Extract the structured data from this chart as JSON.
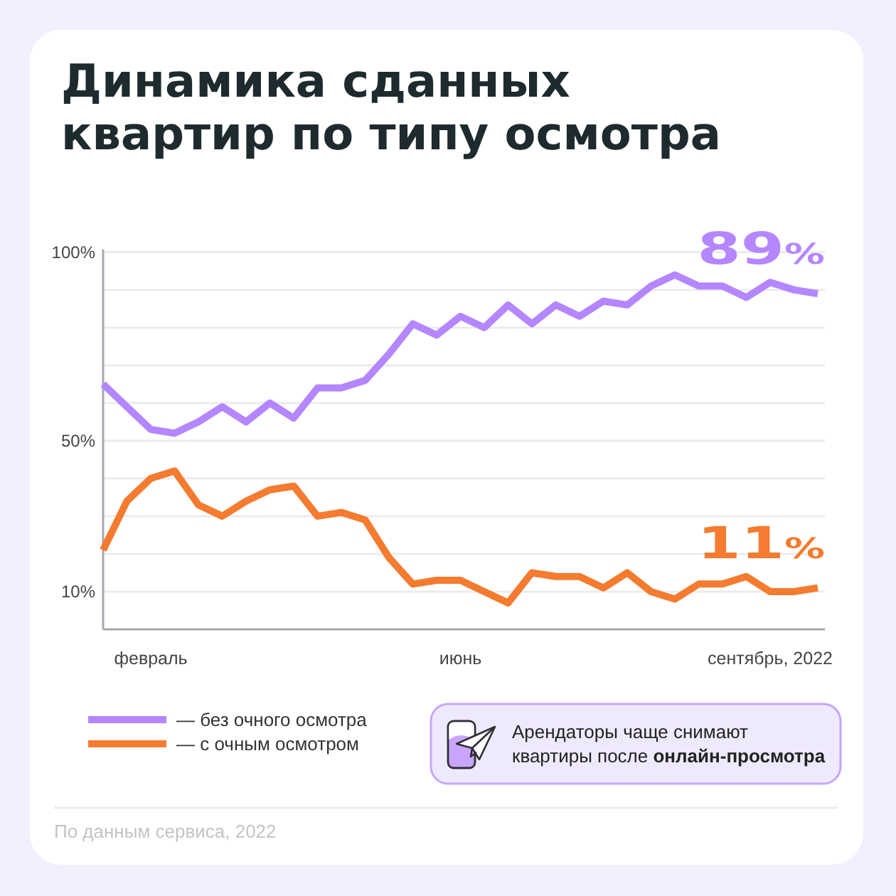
{
  "chart_data": {
    "type": "line",
    "title": "Динамика сданных квартир по типу осмотра",
    "categories": [
      null,
      null,
      "февраль",
      null,
      null,
      null,
      null,
      null,
      null,
      null,
      null,
      null,
      null,
      null,
      null,
      "июнь",
      null,
      null,
      null,
      null,
      null,
      null,
      null,
      null,
      null,
      null,
      null,
      null,
      "сентябрь, 2022",
      null,
      null
    ],
    "series": [
      {
        "name": "— без очного осмотра",
        "color": "#b486ff",
        "values": [
          65,
          59,
          53,
          52,
          55,
          59,
          55,
          60,
          56,
          64,
          64,
          66,
          73,
          81,
          78,
          83,
          80,
          86,
          81,
          86,
          83,
          87,
          86,
          91,
          94,
          91,
          91,
          88,
          92,
          90,
          89
        ],
        "value_labels": [
          null,
          null,
          null,
          null,
          null,
          null,
          null,
          null,
          null,
          null,
          null,
          null,
          null,
          null,
          null,
          null,
          null,
          null,
          null,
          null,
          null,
          null,
          null,
          null,
          null,
          null,
          null,
          null,
          null,
          null,
          "89%"
        ]
      },
      {
        "name": "— с очным осмотром",
        "color": "#f47b2f",
        "values": [
          21,
          34,
          40,
          42,
          33,
          30,
          34,
          37,
          38,
          30,
          31,
          29,
          19,
          12,
          13,
          13,
          10,
          7,
          15,
          14,
          14,
          11,
          15,
          10,
          8,
          12,
          12,
          14,
          10,
          10,
          11
        ],
        "value_labels": [
          null,
          null,
          null,
          null,
          null,
          null,
          null,
          null,
          null,
          null,
          null,
          null,
          null,
          null,
          null,
          null,
          null,
          null,
          null,
          null,
          null,
          null,
          null,
          null,
          null,
          null,
          null,
          null,
          null,
          null,
          "11%"
        ]
      }
    ],
    "ylim": [
      0,
      100
    ],
    "yticks": [
      {
        "value": 10,
        "label": "10%"
      },
      {
        "value": 20,
        "label": null
      },
      {
        "value": 30,
        "label": null
      },
      {
        "value": 40,
        "label": null
      },
      {
        "value": 50,
        "label": "50%"
      },
      {
        "value": 60,
        "label": null
      },
      {
        "value": 70,
        "label": null
      },
      {
        "value": 80,
        "label": null
      },
      {
        "value": 90,
        "label": null
      },
      {
        "value": 100,
        "label": "100%"
      }
    ],
    "grid": "y",
    "legend": "bottom",
    "annotations": [
      "Арендаторы чаще снимают квартиры после онлайн-просмотра",
      "По данным сервиса, 2022"
    ]
  }
}
